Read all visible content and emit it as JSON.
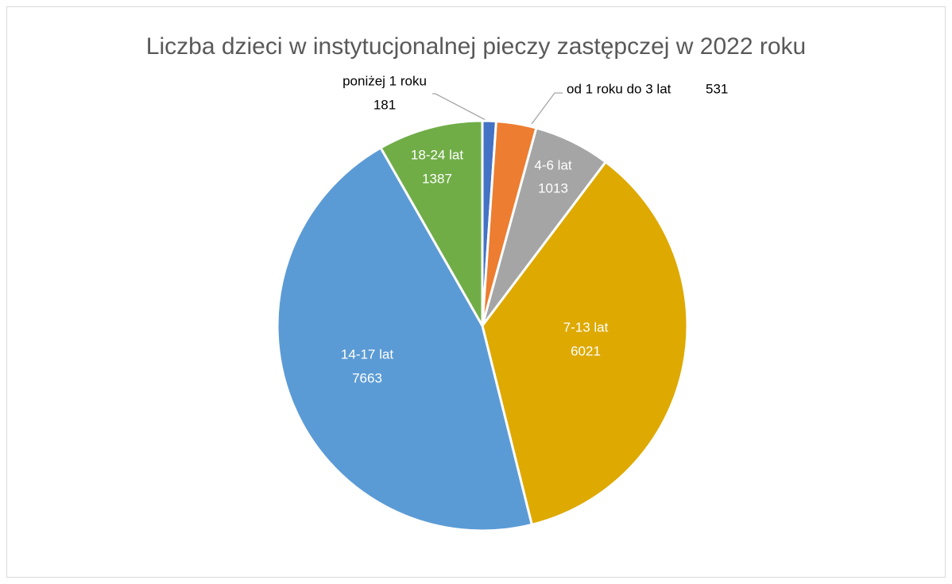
{
  "chart_data": {
    "type": "pie",
    "title": "Liczba dzieci w instytucjonalnej pieczy zastępczej w 2022 roku",
    "categories": [
      "poniżej 1 roku",
      "od 1 roku do 3 lat",
      "4-6 lat",
      "7-13 lat",
      "14-17 lat",
      "18-24 lat"
    ],
    "values": [
      181,
      531,
      1013,
      6021,
      7663,
      1387
    ],
    "colors": [
      "#4472c4",
      "#ed7d31",
      "#a5a5a5",
      "#dea900",
      "#5b9bd5",
      "#70ad47"
    ]
  }
}
